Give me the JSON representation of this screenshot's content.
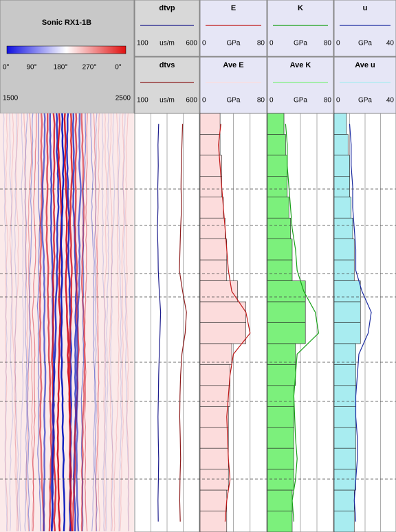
{
  "chart_data": {
    "type": "well-log",
    "image_track": {
      "title": "Sonic RX1-1B",
      "phase_ticks": [
        "0°",
        "90°",
        "180°",
        "270°",
        "0°"
      ],
      "xlim": [
        1500,
        2500
      ]
    },
    "tracks": [
      {
        "curves": [
          {
            "name": "dtvp",
            "unit": "us/m",
            "xlim": [
              100,
              600
            ],
            "color": "#1c1c8c",
            "values": [
              285,
              280,
              282,
              278,
              280,
              275,
              280,
              282,
              290,
              300,
              295,
              290,
              285,
              283,
              280,
              282,
              285,
              283,
              280,
              282
            ]
          },
          {
            "name": "dtvs",
            "unit": "us/m",
            "xlim": [
              100,
              600
            ],
            "color": "#8c1c1c",
            "values": [
              470,
              465,
              460,
              458,
              462,
              455,
              450,
              445,
              470,
              500,
              490,
              465,
              455,
              450,
              448,
              452,
              455,
              450,
              448,
              452
            ]
          }
        ]
      },
      {
        "curves": [
          {
            "name": "E",
            "unit": "GPa",
            "xlim": [
              0,
              80
            ],
            "color": "#c01818",
            "values": [
              25,
              22,
              24,
              26,
              28,
              30,
              32,
              34,
              38,
              55,
              60,
              40,
              36,
              34,
              32,
              33,
              34,
              36,
              32,
              30
            ]
          },
          {
            "name": "Ave E",
            "unit": "GPa",
            "xlim": [
              0,
              80
            ],
            "color": "#fcdcdc",
            "values": [
              24,
              24,
              26,
              26,
              28,
              30,
              32,
              32,
              45,
              55,
              55,
              38,
              36,
              36,
              34,
              34,
              34,
              34,
              32,
              32
            ]
          }
        ]
      },
      {
        "curves": [
          {
            "name": "K",
            "unit": "GPa",
            "xlim": [
              0,
              80
            ],
            "color": "#18a018",
            "values": [
              22,
              24,
              24,
              26,
              28,
              30,
              34,
              36,
              44,
              58,
              62,
              36,
              34,
              32,
              33,
              34,
              36,
              34,
              30,
              32
            ]
          },
          {
            "name": "Ave K",
            "unit": "GPa",
            "xlim": [
              0,
              80
            ],
            "color": "#7cf07c",
            "values": [
              20,
              22,
              24,
              24,
              26,
              28,
              30,
              30,
              46,
              46,
              46,
              34,
              34,
              32,
              32,
              32,
              32,
              32,
              30,
              30
            ]
          }
        ]
      },
      {
        "curves": [
          {
            "name": "u",
            "unit": "GPa",
            "xlim": [
              0,
              40
            ],
            "color": "#1c2ca0",
            "values": [
              10,
              11,
              11,
              12,
              12,
              13,
              14,
              14,
              18,
              24,
              22,
              16,
              15,
              14,
              14,
              15,
              15,
              14,
              13,
              14
            ]
          },
          {
            "name": "Ave u",
            "unit": "GPa",
            "xlim": [
              0,
              40
            ],
            "color": "#a8ecf0",
            "values": [
              8,
              9,
              10,
              10,
              11,
              12,
              13,
              13,
              17,
              17,
              17,
              14,
              14,
              14,
              14,
              14,
              14,
              14,
              13,
              13
            ]
          }
        ]
      }
    ]
  }
}
